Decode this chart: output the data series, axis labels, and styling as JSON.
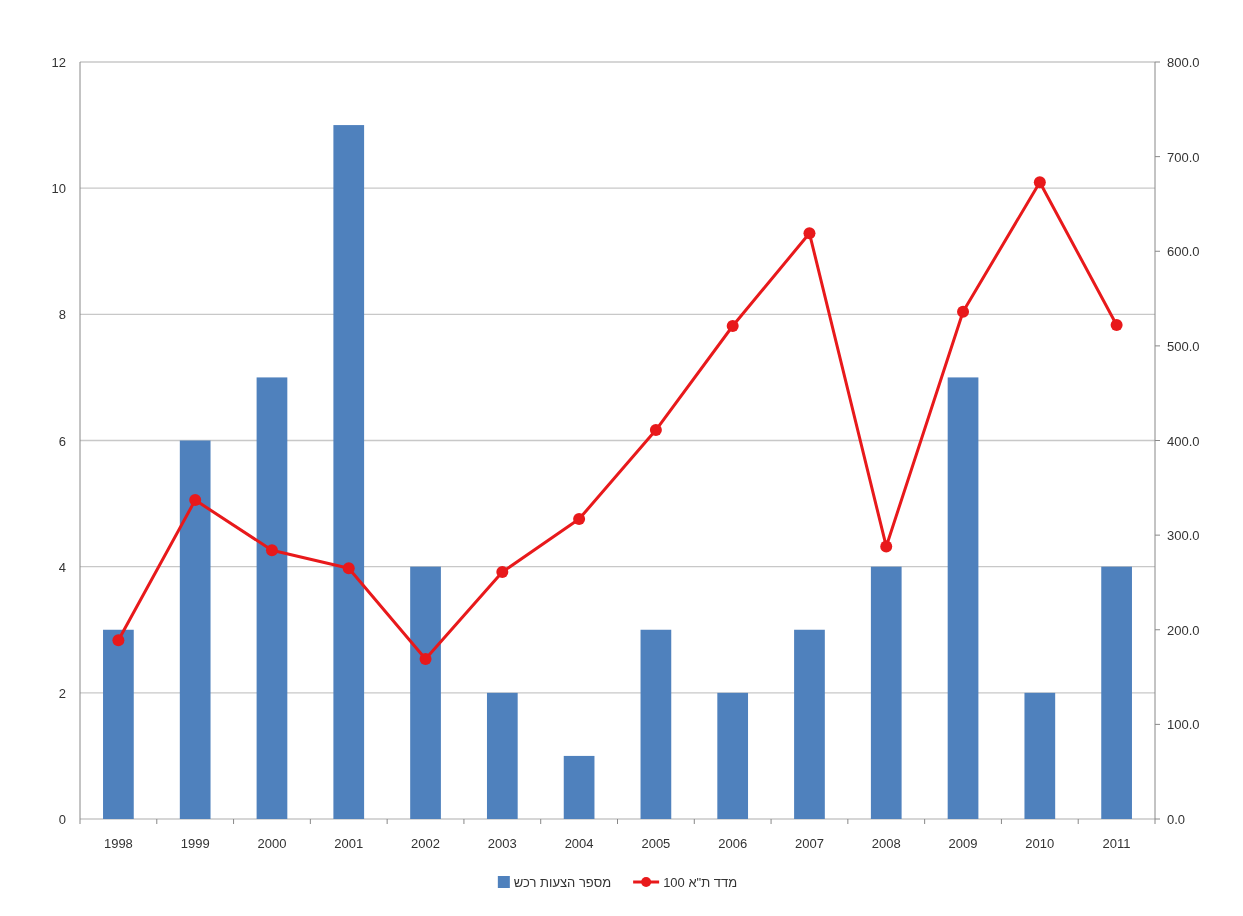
{
  "chart_data": {
    "type": "bar",
    "categories": [
      "1998",
      "1999",
      "2000",
      "2001",
      "2002",
      "2003",
      "2004",
      "2005",
      "2006",
      "2007",
      "2008",
      "2009",
      "2010",
      "2011"
    ],
    "series": [
      {
        "name": "מספר הצעות רכש",
        "color": "#4f81bd",
        "values": [
          3,
          6,
          7,
          11,
          4,
          2,
          1,
          3,
          2,
          3,
          4,
          7,
          2,
          4
        ]
      },
      {
        "name": "מדד ת\"א 100",
        "type": "line",
        "axis": "y2",
        "color": "#e8191b",
        "marker": "circle",
        "values": [
          189,
          337,
          284,
          265,
          169,
          261,
          317,
          411,
          521,
          619,
          288,
          536,
          673,
          522
        ]
      }
    ],
    "ylim": [
      0,
      12
    ],
    "yticks": [
      0,
      2,
      4,
      6,
      8,
      10,
      12
    ],
    "y2lim": [
      0,
      800
    ],
    "y2ticks": [
      {
        "value": 0,
        "label": "0.0"
      },
      {
        "value": 100,
        "label": "100.0"
      },
      {
        "value": 200,
        "label": "200.0"
      },
      {
        "value": 300,
        "label": "300.0"
      },
      {
        "value": 400,
        "label": "400.0"
      },
      {
        "value": 500,
        "label": "500.0"
      },
      {
        "value": 600,
        "label": "600.0"
      },
      {
        "value": 700,
        "label": "700.0"
      },
      {
        "value": 800,
        "label": "800.0"
      }
    ],
    "grid": "y",
    "legend": "bottom"
  }
}
